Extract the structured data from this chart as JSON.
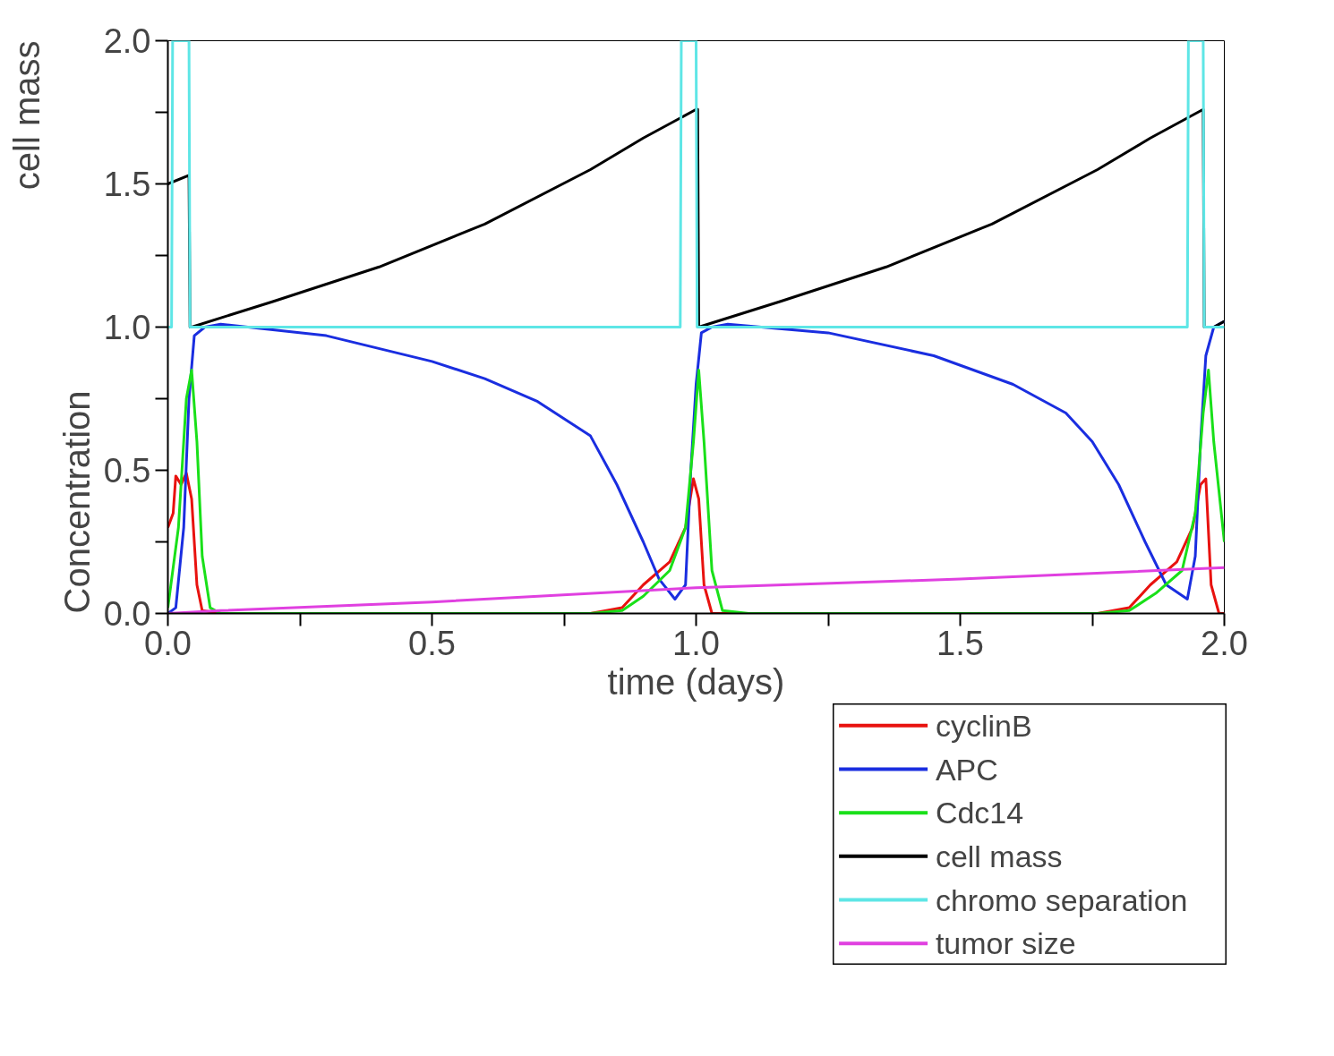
{
  "chart_data": {
    "type": "line",
    "xlabel": "time (days)",
    "ylabel": "Concentration",
    "annotations": [
      "cell mass"
    ],
    "xlim": [
      0,
      2
    ],
    "ylim": [
      0,
      2
    ],
    "xticks": [
      {
        "value": 0,
        "label": "0.0"
      },
      {
        "value": 0.25,
        "label": null
      },
      {
        "value": 0.5,
        "label": "0.5"
      },
      {
        "value": 0.75,
        "label": null
      },
      {
        "value": 1,
        "label": "1.0"
      },
      {
        "value": 1.25,
        "label": null
      },
      {
        "value": 1.5,
        "label": "1.5"
      },
      {
        "value": 1.75,
        "label": null
      },
      {
        "value": 2,
        "label": "2.0"
      }
    ],
    "yticks": [
      {
        "value": 0,
        "label": "0.0"
      },
      {
        "value": 0.25,
        "label": null
      },
      {
        "value": 0.5,
        "label": "0.5"
      },
      {
        "value": 0.75,
        "label": null
      },
      {
        "value": 1,
        "label": "1.0"
      },
      {
        "value": 1.25,
        "label": null
      },
      {
        "value": 1.5,
        "label": "1.5"
      },
      {
        "value": 1.75,
        "label": null
      },
      {
        "value": 2,
        "label": "2.0"
      }
    ],
    "grid": false,
    "legend": "bottom right",
    "marker": "none",
    "line_style": "solid",
    "series": [
      {
        "name": "cyclinB",
        "color": "#e8120f",
        "x": [
          0,
          0.01,
          0.015,
          0.025,
          0.035,
          0.045,
          0.055,
          0.065,
          0.1,
          0.8,
          0.86,
          0.9,
          0.95,
          0.98,
          0.995,
          1.005,
          1.015,
          1.03,
          1.76,
          1.82,
          1.86,
          1.91,
          1.94,
          1.955,
          1.965,
          1.975,
          1.99,
          2.0
        ],
        "values": [
          0.3,
          0.35,
          0.48,
          0.45,
          0.49,
          0.4,
          0.1,
          0.01,
          0,
          0,
          0.02,
          0.1,
          0.18,
          0.3,
          0.47,
          0.4,
          0.1,
          0,
          0,
          0.02,
          0.1,
          0.18,
          0.3,
          0.45,
          0.47,
          0.1,
          0,
          0
        ]
      },
      {
        "name": "APC",
        "color": "#1a2ee0",
        "x": [
          0,
          0.015,
          0.03,
          0.04,
          0.05,
          0.07,
          0.1,
          0.3,
          0.5,
          0.6,
          0.7,
          0.8,
          0.85,
          0.9,
          0.93,
          0.96,
          0.98,
          0.99,
          1.0,
          1.01,
          1.03,
          1.06,
          1.25,
          1.45,
          1.6,
          1.7,
          1.75,
          1.8,
          1.85,
          1.89,
          1.93,
          1.945,
          1.955,
          1.965,
          1.98,
          2.0
        ],
        "values": [
          0,
          0.02,
          0.3,
          0.75,
          0.97,
          1.0,
          1.01,
          0.97,
          0.88,
          0.82,
          0.74,
          0.62,
          0.45,
          0.25,
          0.12,
          0.05,
          0.1,
          0.5,
          0.8,
          0.98,
          1.0,
          1.01,
          0.98,
          0.9,
          0.8,
          0.7,
          0.6,
          0.45,
          0.25,
          0.1,
          0.05,
          0.2,
          0.6,
          0.9,
          1.0,
          1.02
        ]
      },
      {
        "name": "Cdc14",
        "color": "#19e019",
        "x": [
          0,
          0.02,
          0.035,
          0.045,
          0.055,
          0.065,
          0.08,
          0.1,
          0.8,
          0.86,
          0.9,
          0.95,
          0.98,
          0.995,
          1.005,
          1.015,
          1.03,
          1.05,
          1.1,
          1.76,
          1.82,
          1.87,
          1.92,
          1.945,
          1.96,
          1.97,
          1.98,
          2.0
        ],
        "values": [
          0.02,
          0.3,
          0.75,
          0.85,
          0.6,
          0.2,
          0.02,
          0,
          0,
          0.01,
          0.06,
          0.15,
          0.3,
          0.6,
          0.85,
          0.6,
          0.15,
          0.01,
          0,
          0,
          0.01,
          0.07,
          0.15,
          0.35,
          0.7,
          0.85,
          0.6,
          0.25
        ]
      },
      {
        "name": "cell mass",
        "color": "#000000",
        "x": [
          0,
          0.04,
          0.042,
          0.045,
          0.2,
          0.4,
          0.6,
          0.8,
          0.9,
          1.0,
          1.003,
          1.005,
          1.16,
          1.36,
          1.56,
          1.76,
          1.86,
          1.96,
          1.962,
          1.98,
          2.0
        ],
        "values": [
          1.5,
          1.53,
          1.0,
          1.0,
          1.09,
          1.21,
          1.36,
          1.55,
          1.66,
          1.76,
          1.76,
          1.0,
          1.09,
          1.21,
          1.36,
          1.55,
          1.66,
          1.76,
          1.0,
          1.0,
          1.02
        ]
      },
      {
        "name": "chromo separation",
        "color": "#5ee6e6",
        "x": [
          0,
          0.007,
          0.009,
          0.04,
          0.042,
          0.97,
          0.972,
          1.0,
          1.002,
          1.93,
          1.932,
          1.96,
          1.962,
          2.0
        ],
        "values": [
          1,
          1,
          2,
          2,
          1,
          1,
          2,
          2,
          1,
          1,
          2,
          2,
          1,
          1
        ]
      },
      {
        "name": "tumor size",
        "color": "#e040e0",
        "x": [
          0,
          0.1,
          0.5,
          1.0,
          1.5,
          2.0
        ],
        "values": [
          0,
          0.01,
          0.04,
          0.09,
          0.12,
          0.16
        ]
      }
    ]
  }
}
